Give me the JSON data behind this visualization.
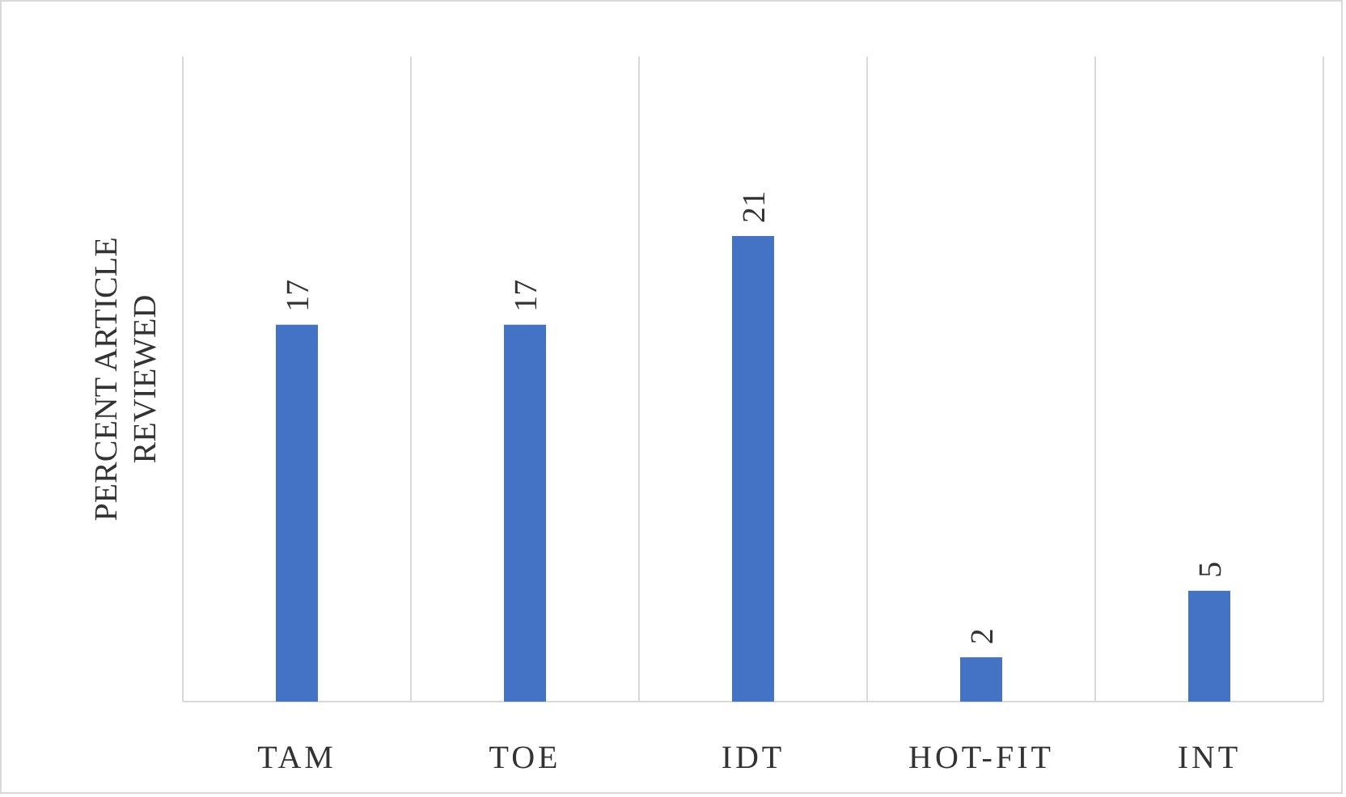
{
  "chart_data": {
    "type": "bar",
    "ylabel": "PERCENT ARTICLE REVIEWED",
    "categories": [
      "TAM",
      "TOE",
      "IDT",
      "HOT-FIT",
      "INT"
    ],
    "values": [
      17,
      17,
      21,
      2,
      5
    ],
    "color": "#4472c4",
    "data_labels": true,
    "grid": "x"
  }
}
